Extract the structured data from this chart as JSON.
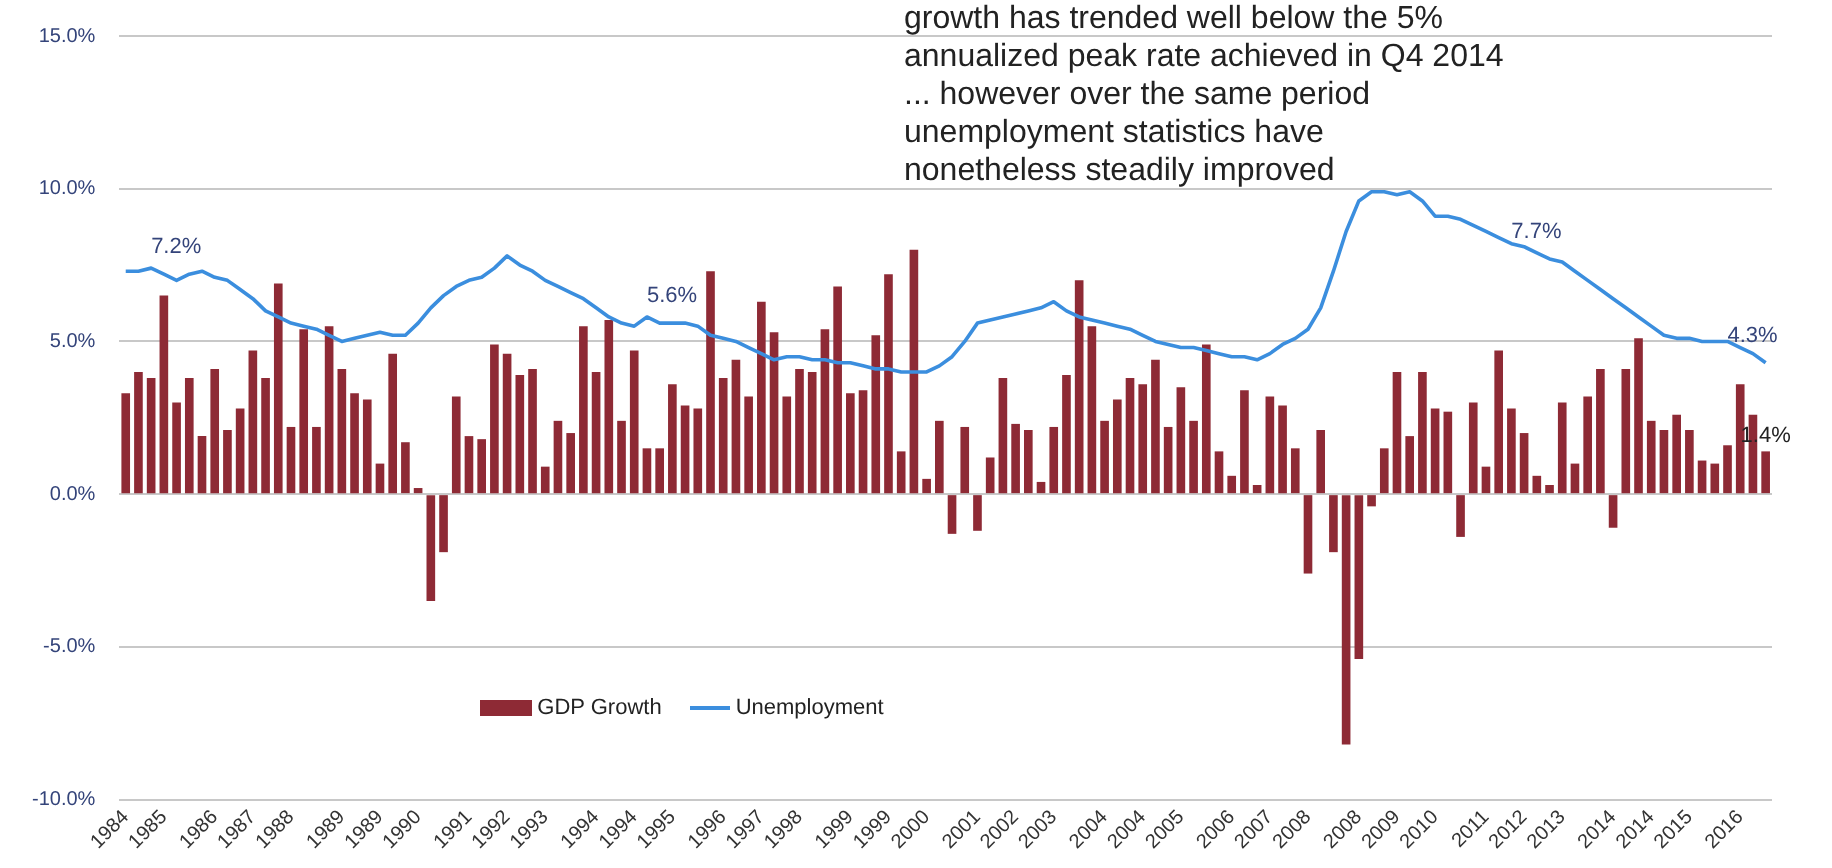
{
  "chart_data": {
    "type": "bar",
    "annotations": [
      "growth has trended well below the 5% annualized peak rate achieved in Q4 2014 ... however over the same period unemployment statistics have nonetheless steadily improved"
    ],
    "categories": [
      "1984",
      null,
      null,
      "1985",
      null,
      null,
      null,
      "1986",
      null,
      null,
      "1987",
      null,
      null,
      "1988",
      null,
      null,
      null,
      "1989",
      null,
      null,
      "1989",
      null,
      null,
      "1990",
      null,
      null,
      null,
      "1991",
      null,
      null,
      "1992",
      null,
      null,
      "1993",
      null,
      null,
      null,
      "1994",
      null,
      null,
      "1994",
      null,
      null,
      "1995",
      null,
      null,
      null,
      "1996",
      null,
      null,
      "1997",
      null,
      null,
      "1998",
      null,
      null,
      null,
      "1999",
      null,
      null,
      "1999",
      null,
      null,
      "2000",
      null,
      null,
      null,
      "2001",
      null,
      null,
      "2002",
      null,
      null,
      "2003",
      null,
      null,
      null,
      "2004",
      null,
      null,
      "2004",
      null,
      null,
      "2005",
      null,
      null,
      null,
      "2006",
      null,
      null,
      "2007",
      null,
      null,
      "2008",
      null,
      null,
      null,
      "2008",
      null,
      null,
      "2009",
      null,
      null,
      "2010",
      null,
      null,
      null,
      "2011",
      null,
      null,
      "2012",
      null,
      null,
      "2013",
      null,
      null,
      null,
      "2014",
      null,
      null,
      "2014",
      null,
      null,
      "2015",
      null,
      null,
      null,
      "2016",
      null,
      null
    ],
    "series": [
      {
        "name": "GDP Growth",
        "color": "#8e2a35",
        "values": [
          3.3,
          4.0,
          3.8,
          6.5,
          3.0,
          3.8,
          1.9,
          4.1,
          2.1,
          2.8,
          4.7,
          3.8,
          6.9,
          2.2,
          5.4,
          2.2,
          5.5,
          4.1,
          3.3,
          3.1,
          1.0,
          4.6,
          1.7,
          0.2,
          -3.5,
          -1.9,
          3.2,
          1.9,
          1.8,
          4.9,
          4.6,
          3.9,
          4.1,
          0.9,
          2.4,
          2.0,
          5.5,
          4.0,
          5.7,
          2.4,
          4.7,
          1.5,
          1.5,
          3.6,
          2.9,
          2.8,
          7.3,
          3.8,
          4.4,
          3.2,
          6.3,
          5.3,
          3.2,
          4.1,
          4.0,
          5.4,
          6.8,
          3.3,
          3.4,
          5.2,
          7.2,
          1.4,
          8.0,
          0.5,
          2.4,
          -1.3,
          2.2,
          -1.2,
          1.2,
          3.8,
          2.3,
          2.1,
          0.4,
          2.2,
          3.9,
          7.0,
          5.5,
          2.4,
          3.1,
          3.8,
          3.6,
          4.4,
          2.2,
          3.5,
          2.4,
          4.9,
          1.4,
          0.6,
          3.4,
          0.3,
          3.2,
          2.9,
          1.5,
          -2.6,
          2.1,
          -1.9,
          -8.2,
          -5.4,
          -0.4,
          1.5,
          4.0,
          1.9,
          4.0,
          2.8,
          2.7,
          -1.4,
          3.0,
          0.9,
          4.7,
          2.8,
          2.0,
          0.6,
          0.3,
          3.0,
          1.0,
          3.2,
          4.1,
          -1.1,
          4.1,
          5.1,
          2.4,
          2.1,
          2.6,
          2.1,
          1.1,
          1.0,
          1.6,
          3.6,
          2.6,
          1.4
        ],
        "value_labels": [
          null,
          null,
          null,
          null,
          null,
          null,
          null,
          null,
          null,
          null,
          null,
          null,
          null,
          null,
          null,
          null,
          null,
          null,
          null,
          null,
          null,
          null,
          null,
          null,
          null,
          null,
          null,
          null,
          null,
          null,
          null,
          null,
          null,
          null,
          null,
          null,
          null,
          null,
          null,
          null,
          null,
          null,
          null,
          null,
          null,
          null,
          null,
          null,
          null,
          null,
          null,
          null,
          null,
          null,
          null,
          null,
          null,
          null,
          null,
          null,
          null,
          null,
          null,
          null,
          null,
          null,
          null,
          null,
          null,
          null,
          null,
          null,
          null,
          null,
          null,
          null,
          null,
          null,
          null,
          null,
          null,
          null,
          null,
          null,
          null,
          null,
          null,
          null,
          null,
          null,
          null,
          null,
          null,
          null,
          null,
          null,
          null,
          null,
          null,
          null,
          null,
          null,
          null,
          null,
          null,
          null,
          null,
          null,
          null,
          null,
          null,
          null,
          null,
          null,
          null,
          null,
          null,
          null,
          null,
          null,
          null,
          null,
          null,
          null,
          null,
          null,
          null,
          null,
          null,
          "1.4%"
        ]
      },
      {
        "name": "Unemployment",
        "type": "line",
        "color": "#3b8ede",
        "values": [
          7.3,
          7.3,
          7.4,
          7.2,
          7.0,
          7.2,
          7.3,
          7.1,
          7.0,
          6.7,
          6.4,
          6.0,
          5.8,
          5.6,
          5.5,
          5.4,
          5.2,
          5.0,
          5.1,
          5.2,
          5.3,
          5.2,
          5.2,
          5.6,
          6.1,
          6.5,
          6.8,
          7.0,
          7.1,
          7.4,
          7.8,
          7.5,
          7.3,
          7.0,
          6.8,
          6.6,
          6.4,
          6.1,
          5.8,
          5.6,
          5.5,
          5.8,
          5.6,
          5.6,
          5.6,
          5.5,
          5.2,
          5.1,
          5.0,
          4.8,
          4.6,
          4.4,
          4.5,
          4.5,
          4.4,
          4.4,
          4.3,
          4.3,
          4.2,
          4.1,
          4.1,
          4.0,
          4.0,
          4.0,
          4.2,
          4.5,
          5.0,
          5.6,
          5.7,
          5.8,
          5.9,
          6.0,
          6.1,
          6.3,
          6.0,
          5.8,
          5.7,
          5.6,
          5.5,
          5.4,
          5.2,
          5.0,
          4.9,
          4.8,
          4.8,
          4.7,
          4.6,
          4.5,
          4.5,
          4.4,
          4.6,
          4.9,
          5.1,
          5.4,
          6.1,
          7.3,
          8.6,
          9.6,
          9.9,
          9.9,
          9.8,
          9.9,
          9.6,
          9.1,
          9.1,
          9.0,
          8.8,
          8.6,
          8.4,
          8.2,
          8.1,
          7.9,
          7.7,
          7.6,
          7.3,
          7.0,
          6.7,
          6.4,
          6.1,
          5.8,
          5.5,
          5.2,
          5.1,
          5.1,
          5.0,
          5.0,
          5.0,
          4.8,
          4.6,
          4.3
        ],
        "value_labels": [
          null,
          null,
          null,
          null,
          null,
          "7.2%",
          null,
          null,
          null,
          null,
          null,
          null,
          null,
          null,
          null,
          null,
          null,
          null,
          null,
          null,
          null,
          null,
          null,
          null,
          null,
          null,
          null,
          null,
          null,
          null,
          null,
          null,
          null,
          null,
          null,
          null,
          null,
          null,
          null,
          null,
          null,
          null,
          null,
          null,
          "5.6%",
          null,
          null,
          null,
          null,
          null,
          null,
          null,
          null,
          null,
          null,
          null,
          null,
          null,
          null,
          null,
          null,
          null,
          null,
          null,
          null,
          null,
          null,
          null,
          null,
          null,
          null,
          null,
          null,
          null,
          null,
          null,
          null,
          null,
          null,
          null,
          null,
          null,
          null,
          null,
          null,
          null,
          null,
          null,
          null,
          null,
          null,
          null,
          null,
          null,
          null,
          null,
          null,
          null,
          null,
          null,
          null,
          null,
          null,
          null,
          null,
          null,
          null,
          null,
          null,
          null,
          null,
          null,
          "7.7%",
          null,
          null,
          null,
          null,
          null,
          null,
          null,
          null,
          null,
          null,
          null,
          null,
          null,
          null,
          null,
          null,
          "4.3%"
        ]
      }
    ],
    "ylim": [
      -10,
      15
    ],
    "yticks": [
      {
        "value": -10,
        "label": "-10.0%"
      },
      {
        "value": -5,
        "label": "-5.0%"
      },
      {
        "value": 0,
        "label": "0.0%"
      },
      {
        "value": 5,
        "label": "5.0%"
      },
      {
        "value": 10,
        "label": "10.0%"
      },
      {
        "value": 15,
        "label": "15.0%"
      }
    ],
    "grid": "y",
    "legend": "bottom left",
    "marker": "none"
  }
}
